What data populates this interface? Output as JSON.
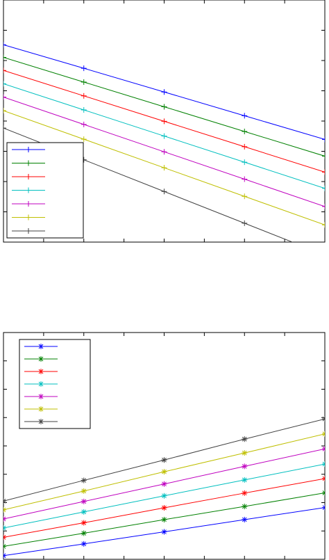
{
  "chart_data": [
    {
      "type": "line",
      "title": "",
      "xlabel": "",
      "ylabel": "",
      "x": [
        0,
        1,
        2,
        3,
        4
      ],
      "xlim": [
        0,
        4
      ],
      "ylim": [
        0,
        1
      ],
      "xtick_count": 9,
      "ytick_count": 9,
      "grid": false,
      "legend_position": "bottom-left",
      "marker": "plus",
      "series": [
        {
          "color": "#0000ff",
          "values": [
            0.815,
            0.718,
            0.62,
            0.522,
            0.424
          ]
        },
        {
          "color": "#008000",
          "values": [
            0.763,
            0.661,
            0.559,
            0.457,
            0.355
          ]
        },
        {
          "color": "#ff0000",
          "values": [
            0.709,
            0.604,
            0.499,
            0.394,
            0.289
          ]
        },
        {
          "color": "#00bfbf",
          "values": [
            0.654,
            0.546,
            0.438,
            0.33,
            0.222
          ]
        },
        {
          "color": "#bf00bf",
          "values": [
            0.599,
            0.486,
            0.373,
            0.26,
            0.147
          ]
        },
        {
          "color": "#bfbf00",
          "values": [
            0.543,
            0.425,
            0.307,
            0.189,
            0.071
          ]
        },
        {
          "color": "#404040",
          "values": [
            0.471,
            0.34,
            0.209,
            0.078,
            -0.053
          ]
        }
      ]
    },
    {
      "type": "line",
      "title": "",
      "xlabel": "",
      "ylabel": "",
      "x": [
        0,
        1,
        2,
        3,
        4
      ],
      "xlim": [
        0,
        4
      ],
      "ylim": [
        0,
        1
      ],
      "xtick_count": 9,
      "ytick_count": 9,
      "grid": false,
      "legend_position": "top-left",
      "marker": "asterisk",
      "series": [
        {
          "color": "#0000ff",
          "values": [
            0.016,
            0.068,
            0.121,
            0.175,
            0.228
          ]
        },
        {
          "color": "#008000",
          "values": [
            0.057,
            0.115,
            0.175,
            0.233,
            0.293
          ]
        },
        {
          "color": "#ff0000",
          "values": [
            0.097,
            0.161,
            0.227,
            0.292,
            0.356
          ]
        },
        {
          "color": "#00bfbf",
          "values": [
            0.138,
            0.209,
            0.28,
            0.35,
            0.42
          ]
        },
        {
          "color": "#bf00bf",
          "values": [
            0.178,
            0.255,
            0.332,
            0.41,
            0.487
          ]
        },
        {
          "color": "#bfbf00",
          "values": [
            0.218,
            0.301,
            0.386,
            0.469,
            0.553
          ]
        },
        {
          "color": "#404040",
          "values": [
            0.257,
            0.348,
            0.438,
            0.53,
            0.619
          ]
        }
      ]
    }
  ]
}
